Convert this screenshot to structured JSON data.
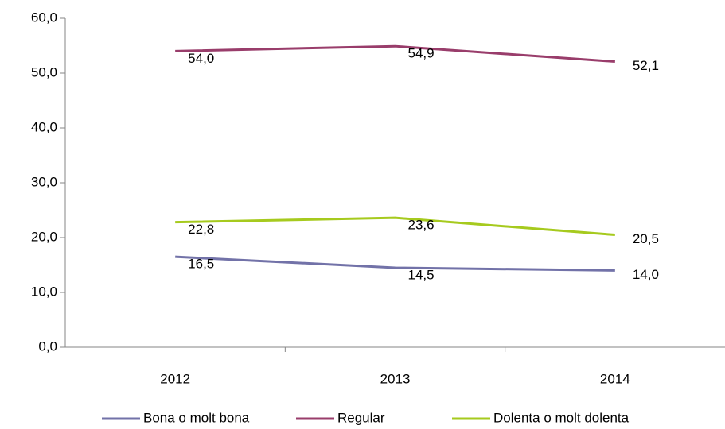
{
  "chart_data": {
    "type": "line",
    "categories": [
      "2012",
      "2013",
      "2014"
    ],
    "series": [
      {
        "name": "Bona o molt bona",
        "color": "#7272a8",
        "values": [
          16.5,
          14.5,
          14.0
        ],
        "value_labels": [
          "16,5",
          "14,5",
          "14,0"
        ]
      },
      {
        "name": "Regular",
        "color": "#993d6b",
        "values": [
          54.0,
          54.9,
          52.1
        ],
        "value_labels": [
          "54,0",
          "54,9",
          "52,1"
        ]
      },
      {
        "name": "Dolenta o molt dolenta",
        "color": "#a6ca1e",
        "values": [
          22.8,
          23.6,
          20.5
        ],
        "value_labels": [
          "22,8",
          "23,6",
          "20,5"
        ]
      }
    ],
    "ylim": [
      0,
      60
    ],
    "yticks": [
      {
        "value": 0,
        "label": "0,0"
      },
      {
        "value": 10,
        "label": "10,0"
      },
      {
        "value": 20,
        "label": "20,0"
      },
      {
        "value": 30,
        "label": "30,0"
      },
      {
        "value": 40,
        "label": "40,0"
      },
      {
        "value": 50,
        "label": "50,0"
      },
      {
        "value": 60,
        "label": "60,0"
      }
    ],
    "grid": false,
    "legend": "bottom"
  }
}
